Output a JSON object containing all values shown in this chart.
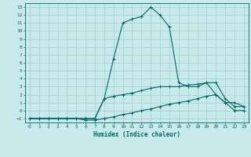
{
  "xlabel": "Humidex (Indice chaleur)",
  "xlim": [
    -0.5,
    23.5
  ],
  "ylim": [
    -1.5,
    13.5
  ],
  "xticks": [
    0,
    1,
    2,
    3,
    4,
    5,
    6,
    7,
    8,
    9,
    10,
    11,
    12,
    13,
    14,
    15,
    16,
    17,
    18,
    19,
    20,
    21,
    22,
    23
  ],
  "yticks": [
    -1,
    0,
    1,
    2,
    3,
    4,
    5,
    6,
    7,
    8,
    9,
    10,
    11,
    12,
    13
  ],
  "bg_color": "#c8eaea",
  "grid_color": "#9ecece",
  "line_color": "#006666",
  "line1_x": [
    0,
    1,
    2,
    3,
    4,
    5,
    6,
    7,
    8,
    9,
    10,
    11,
    12,
    13,
    14,
    15,
    16,
    17,
    18,
    19,
    20,
    21,
    22,
    23
  ],
  "line1_y": [
    -1,
    -1,
    -1,
    -1,
    -1,
    -1,
    -1,
    -1,
    1.5,
    6.5,
    11,
    11.5,
    11.8,
    13,
    12,
    10.5,
    3.5,
    3,
    3,
    3.5,
    2,
    1,
    1,
    0.5
  ],
  "line2_x": [
    0,
    1,
    2,
    3,
    4,
    5,
    6,
    7,
    8,
    9,
    10,
    11,
    12,
    13,
    14,
    15,
    16,
    17,
    18,
    19,
    20,
    21,
    22,
    23
  ],
  "line2_y": [
    -1,
    -1,
    -1,
    -1,
    -1,
    -1,
    -1,
    -1,
    1.5,
    1.8,
    2,
    2.2,
    2.5,
    2.8,
    3,
    3,
    3,
    3.2,
    3.3,
    3.5,
    3.5,
    1.5,
    0.5,
    0.5
  ],
  "line3_x": [
    0,
    1,
    2,
    3,
    4,
    5,
    6,
    7,
    8,
    9,
    10,
    11,
    12,
    13,
    14,
    15,
    16,
    17,
    18,
    19,
    20,
    21,
    22,
    23
  ],
  "line3_y": [
    -1,
    -1,
    -1,
    -1,
    -1,
    -1,
    -1.2,
    -1.2,
    -1,
    -0.8,
    -0.5,
    -0.3,
    0,
    0.2,
    0.5,
    0.8,
    1,
    1.2,
    1.5,
    1.8,
    2,
    1,
    0,
    0
  ]
}
